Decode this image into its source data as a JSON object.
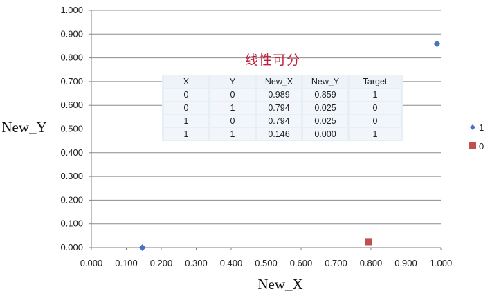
{
  "chart_data": {
    "type": "scatter",
    "title": "线性可分",
    "xlabel": "New_X",
    "ylabel": "New_Y",
    "xlim": [
      0,
      1
    ],
    "ylim": [
      0,
      1
    ],
    "x_ticks": [
      "0.000",
      "0.100",
      "0.200",
      "0.300",
      "0.400",
      "0.500",
      "0.600",
      "0.700",
      "0.800",
      "0.900",
      "1.000"
    ],
    "y_ticks": [
      "0.000",
      "0.100",
      "0.200",
      "0.300",
      "0.400",
      "0.500",
      "0.600",
      "0.700",
      "0.800",
      "0.900",
      "1.000"
    ],
    "grid": "horizontal",
    "legend_position": "right",
    "series": [
      {
        "name": "1",
        "marker": "diamond",
        "color": "#4a72c0",
        "points": [
          {
            "x": 0.989,
            "y": 0.859
          },
          {
            "x": 0.146,
            "y": 0.0
          }
        ]
      },
      {
        "name": "0",
        "marker": "square",
        "color": "#c0504d",
        "points": [
          {
            "x": 0.794,
            "y": 0.025
          },
          {
            "x": 0.794,
            "y": 0.025
          }
        ]
      }
    ]
  },
  "table": {
    "headers": [
      "X",
      "Y",
      "New_X",
      "New_Y",
      "Target"
    ],
    "rows": [
      [
        "0",
        "0",
        "0.989",
        "0.859",
        "1"
      ],
      [
        "0",
        "1",
        "0.794",
        "0.025",
        "0"
      ],
      [
        "1",
        "0",
        "0.794",
        "0.025",
        "0"
      ],
      [
        "1",
        "1",
        "0.146",
        "0.000",
        "1"
      ]
    ]
  }
}
